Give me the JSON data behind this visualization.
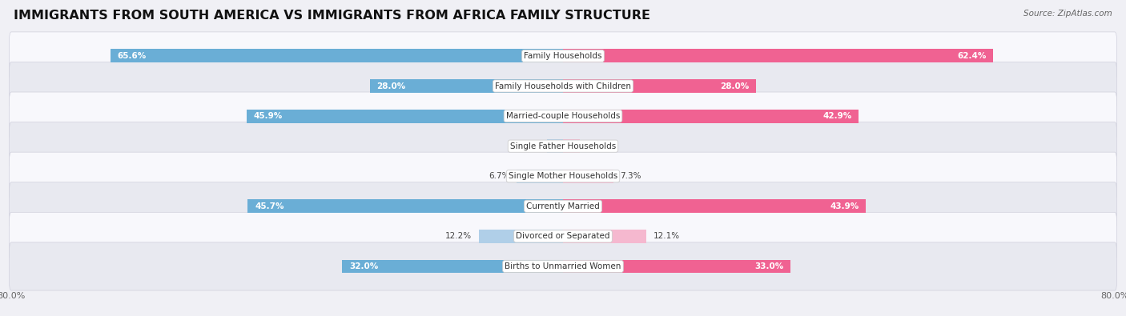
{
  "title": "IMMIGRANTS FROM SOUTH AMERICA VS IMMIGRANTS FROM AFRICA FAMILY STRUCTURE",
  "source": "Source: ZipAtlas.com",
  "categories": [
    "Family Households",
    "Family Households with Children",
    "Married-couple Households",
    "Single Father Households",
    "Single Mother Households",
    "Currently Married",
    "Divorced or Separated",
    "Births to Unmarried Women"
  ],
  "south_america_values": [
    65.6,
    28.0,
    45.9,
    2.3,
    6.7,
    45.7,
    12.2,
    32.0
  ],
  "africa_values": [
    62.4,
    28.0,
    42.9,
    2.4,
    7.3,
    43.9,
    12.1,
    33.0
  ],
  "south_america_color_strong": "#6aaed6",
  "south_america_color_weak": "#b0cfe8",
  "africa_color_strong": "#f06292",
  "africa_color_weak": "#f5b8cf",
  "south_america_label": "Immigrants from South America",
  "africa_label": "Immigrants from Africa",
  "axis_limit": 80.0,
  "background_color": "#f0f0f5",
  "row_bg_even": "#f8f8fc",
  "row_bg_odd": "#e8e9f0",
  "title_fontsize": 11.5,
  "label_fontsize": 7.5,
  "value_fontsize": 7.5,
  "axis_label_fontsize": 8,
  "legend_fontsize": 8,
  "strong_threshold": 20
}
